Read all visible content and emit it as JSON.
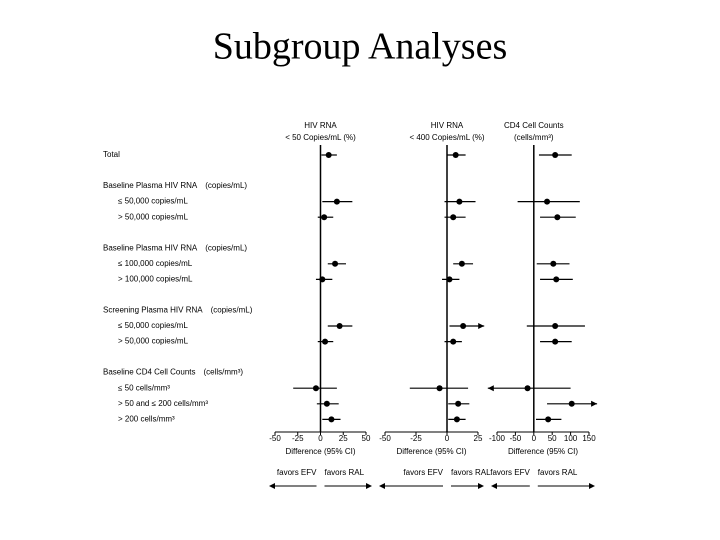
{
  "title": "Subgroup Analyses",
  "row_labels": [
    "Total",
    "Baseline Plasma HIV RNA",
    "≤ 50,000 copies/mL",
    "> 50,000 copies/mL",
    "Baseline Plasma HIV RNA",
    "≤ 100,000 copies/mL",
    "> 100,000 copies/mL",
    "Screening Plasma HIV RNA",
    "≤ 50,000 copies/mL",
    "> 50,000 copies/mL",
    "Baseline CD4 Cell Counts",
    "≤ 50 cells/mm³",
    "> 50 and ≤ 200 cells/mm³",
    "> 200 cells/mm³"
  ],
  "row_units": [
    null,
    "(copies/mL)",
    null,
    null,
    "(copies/mL)",
    null,
    null,
    "(copies/mL)",
    null,
    null,
    "(cells/mm³)",
    null,
    null,
    null
  ],
  "chart_data": [
    {
      "type": "forest",
      "title_lines": [
        "HIV RNA",
        "< 50 Copies/mL (%)"
      ],
      "x_label": "Difference (95% CI)",
      "favors_left": "favors EFV",
      "favors_right": "favors RAL",
      "values": [
        9,
        null,
        18,
        4,
        null,
        16,
        2,
        null,
        21,
        5,
        null,
        -5,
        7,
        12
      ],
      "ci_low": [
        1,
        null,
        2,
        -3,
        null,
        8,
        -5,
        null,
        8,
        -3,
        null,
        -30,
        -4,
        2
      ],
      "ci_high": [
        18,
        null,
        35,
        14,
        null,
        28,
        13,
        null,
        35,
        14,
        null,
        18,
        20,
        22
      ],
      "xlim": [
        -50,
        50
      ],
      "xticks": [
        -50,
        -25,
        0,
        25,
        50
      ]
    },
    {
      "type": "forest",
      "title_lines": [
        "HIV RNA",
        "< 400 Copies/mL (%)"
      ],
      "x_label": "Difference (95% CI)",
      "favors_left": "favors EFV",
      "favors_right": "favors RAL",
      "values": [
        7,
        null,
        10,
        5,
        null,
        12,
        2,
        null,
        13,
        5,
        null,
        -6,
        9,
        8
      ],
      "ci_low": [
        0,
        null,
        -2,
        -2,
        null,
        5,
        -4,
        null,
        2,
        -2,
        null,
        -30,
        1,
        1
      ],
      "ci_high": [
        15,
        null,
        23,
        15,
        null,
        21,
        10,
        null,
        30,
        12,
        null,
        17,
        18,
        15
      ],
      "xlim": [
        -50,
        25
      ],
      "xticks": [
        -50,
        -25,
        0,
        25
      ]
    },
    {
      "type": "forest",
      "title_lines": [
        "CD4 Cell Counts",
        "(cells/mm³)"
      ],
      "x_label": "Difference (95% CI)",
      "favors_left": "favors EFV",
      "favors_right": "favors RAL",
      "values": [
        58,
        null,
        36,
        64,
        null,
        53,
        61,
        null,
        58,
        58,
        null,
        -17,
        103,
        39
      ],
      "ci_low": [
        14,
        null,
        -44,
        17,
        null,
        8,
        17,
        null,
        -19,
        17,
        null,
        -125,
        36,
        6
      ],
      "ci_high": [
        103,
        null,
        125,
        114,
        null,
        97,
        106,
        null,
        139,
        103,
        null,
        100,
        172,
        75
      ],
      "xlim": [
        -100,
        150
      ],
      "xticks": [
        -100,
        -50,
        0,
        50,
        100,
        150
      ]
    }
  ]
}
